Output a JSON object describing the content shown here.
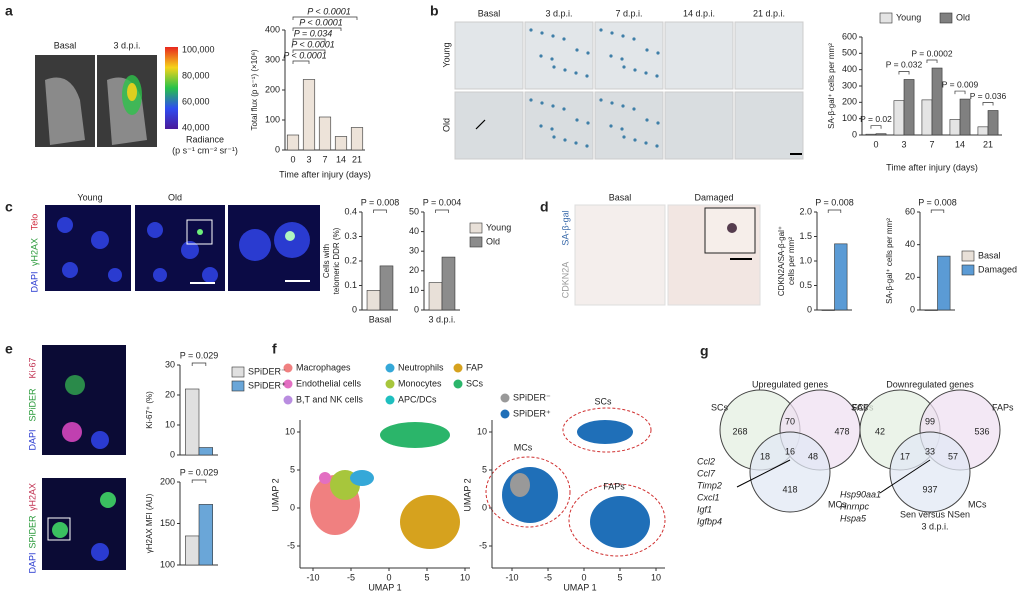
{
  "panels": {
    "a": {
      "letter": "a",
      "images": [
        "Basal",
        "3 d.p.i."
      ],
      "colorbar": {
        "ticks": [
          "100,000",
          "80,000",
          "60,000",
          "40,000"
        ],
        "label": "Radiance",
        "unit": "(p s⁻¹ cm⁻² sr⁻¹)"
      }
    },
    "b": {
      "letter": "b",
      "columns": [
        "Basal",
        "3 d.p.i.",
        "7 d.p.i.",
        "14 d.p.i.",
        "21 d.p.i."
      ],
      "rows": [
        "Young",
        "Old"
      ]
    },
    "c": {
      "letter": "c",
      "columns": [
        "Young",
        "Old"
      ],
      "stains": [
        "Telo",
        "γH2AX",
        "DAPI"
      ]
    },
    "d": {
      "letter": "d",
      "columns": [
        "Basal",
        "Damaged"
      ],
      "stains": [
        "SA-β-gal",
        "CDKN2A"
      ]
    },
    "e": {
      "letter": "e",
      "stains_top": [
        "Ki-67",
        "SPiDER",
        "DAPI"
      ],
      "stains_bottom": [
        "γH2AX",
        "SPiDER",
        "DAPI"
      ]
    },
    "f": {
      "letter": "f",
      "legend_left": [
        "Macrophages",
        "Neutrophils",
        "FAP",
        "Endothelial cells",
        "Monocytes",
        "SCs",
        "B,T and NK cells",
        "APC/DCs"
      ],
      "legend_right": [
        "SPiDER⁻",
        "SPiDER⁺"
      ],
      "clusters": [
        "SCs",
        "MCs",
        "FAPs"
      ],
      "xlabel": "UMAP 1",
      "ylabel": "UMAP 2",
      "xticks": [
        -10,
        -5,
        0,
        5,
        10
      ],
      "yticks": [
        10,
        5,
        0,
        -5
      ]
    },
    "g": {
      "letter": "g",
      "up": {
        "title": "Upregulated genes",
        "sets": [
          "SCs",
          "FAPs",
          "MCs"
        ],
        "counts": [
          268,
          70,
          478,
          18,
          16,
          48,
          418
        ],
        "genes": [
          "Ccl2",
          "Ccl7",
          "Timp2",
          "Cxcl1",
          "Igf1",
          "Igfbp4"
        ]
      },
      "down": {
        "title": "Downregulated genes",
        "sets": [
          "SCs",
          "FAPs",
          "MCs"
        ],
        "counts": [
          42,
          99,
          536,
          17,
          33,
          57,
          937
        ],
        "genes": [
          "Hsp90aa1",
          "Hnrnpc",
          "Hspa5"
        ],
        "footer": [
          "Sen versus NSen",
          "3 d.p.i."
        ]
      }
    }
  },
  "chart_data": [
    {
      "type": "bar",
      "ylabel": "Total flux (p s⁻¹) (×10⁶)",
      "xlabel": "Time after injury (days)",
      "categories": [
        "0",
        "3",
        "7",
        "14",
        "21"
      ],
      "series": [
        {
          "color": "#ede3d9",
          "values": [
            50,
            235,
            110,
            45,
            75
          ]
        }
      ],
      "ylim": [
        0,
        400
      ],
      "yticks": [
        0,
        100,
        200,
        300,
        400
      ],
      "annotations": [
        "P < 0.0001",
        "P < 0.0001",
        "P = 0.034",
        "P < 0.0001",
        "P < 0.0001"
      ]
    },
    {
      "type": "bar",
      "ylabel": "SA-β-gal⁺ cells per mm²",
      "xlabel": "Time after injury (days)",
      "categories": [
        "0",
        "3",
        "7",
        "14",
        "21"
      ],
      "series": [
        {
          "name": "Young",
          "color": "#e4e4e4",
          "values": [
            5,
            210,
            215,
            95,
            50
          ]
        },
        {
          "name": "Old",
          "color": "#808080",
          "values": [
            8,
            340,
            410,
            220,
            150
          ]
        }
      ],
      "ylim": [
        0,
        600
      ],
      "yticks": [
        0,
        100,
        200,
        300,
        400,
        500,
        600
      ],
      "legend": "top",
      "annotations": [
        "P = 0.02",
        "P = 0.032",
        "P = 0.0002",
        "P = 0.009",
        "P = 0.036"
      ]
    },
    {
      "type": "bar",
      "ylabel": [
        "Cells with",
        "telomeric DDR (%)"
      ],
      "categories": [
        "Basal"
      ],
      "series": [
        {
          "color": "#e8e0d8",
          "values": [
            0.08
          ]
        },
        {
          "color": "#8c8c8c",
          "values": [
            0.18
          ]
        }
      ],
      "ylim": [
        0,
        0.4
      ],
      "yticks": [
        0,
        0.1,
        0.2,
        0.3,
        0.4
      ],
      "annotations": [
        "P = 0.008"
      ]
    },
    {
      "type": "bar",
      "categories": [
        "3 d.p.i."
      ],
      "series": [
        {
          "name": "Young",
          "color": "#e8e0d8",
          "values": [
            14
          ]
        },
        {
          "name": "Old",
          "color": "#8c8c8c",
          "values": [
            27
          ]
        }
      ],
      "ylim": [
        0,
        50
      ],
      "yticks": [
        0,
        10,
        20,
        30,
        40,
        50
      ],
      "legend": "right",
      "annotations": [
        "P = 0.004"
      ]
    },
    {
      "type": "bar",
      "ylabel": [
        "CDKN2A/SA-β-gal⁺",
        "cells per mm²"
      ],
      "categories": [
        null
      ],
      "series": [
        {
          "color": "#e8e0d8",
          "values": [
            0
          ]
        },
        {
          "color": "#5b9bd5",
          "values": [
            1.35
          ]
        }
      ],
      "ylim": [
        0,
        2
      ],
      "yticks": [
        0,
        0.5,
        {
          "value": 1,
          "label": "1.0"
        },
        1.5,
        {
          "value": 2,
          "label": "2.0"
        }
      ],
      "annotations": [
        "P = 0.008"
      ]
    },
    {
      "type": "bar",
      "ylabel": "SA-β-gal⁺ cells per mm²",
      "categories": [
        null
      ],
      "series": [
        {
          "name": "Basal",
          "color": "#e8e0d8",
          "values": [
            0
          ]
        },
        {
          "name": "Damaged",
          "color": "#5b9bd5",
          "values": [
            33
          ]
        }
      ],
      "ylim": [
        0,
        60
      ],
      "yticks": [
        0,
        20,
        40,
        60
      ],
      "legend": "right",
      "annotations": [
        "P = 0.008"
      ]
    },
    {
      "type": "bar",
      "ylabel": "Ki-67⁺ (%)",
      "categories": [
        null
      ],
      "series": [
        {
          "name": "SPiDER⁻",
          "color": "#e0e0e0",
          "values": [
            22
          ]
        },
        {
          "name": "SPiDER⁺",
          "color": "#6aa6d8",
          "values": [
            2.5
          ]
        }
      ],
      "ylim": [
        0,
        30
      ],
      "yticks": [
        0,
        10,
        20,
        30
      ],
      "legend": "right",
      "annotations": [
        "P = 0.029"
      ]
    },
    {
      "type": "bar",
      "ylabel": "γH2AX MFI (AU)",
      "categories": [
        null
      ],
      "series": [
        {
          "color": "#e0e0e0",
          "values": [
            135
          ]
        },
        {
          "color": "#6aa6d8",
          "values": [
            173
          ]
        }
      ],
      "ylim": [
        100,
        200
      ],
      "yticks": [
        100,
        150,
        200
      ],
      "annotations": [
        "P = 0.029"
      ]
    }
  ]
}
